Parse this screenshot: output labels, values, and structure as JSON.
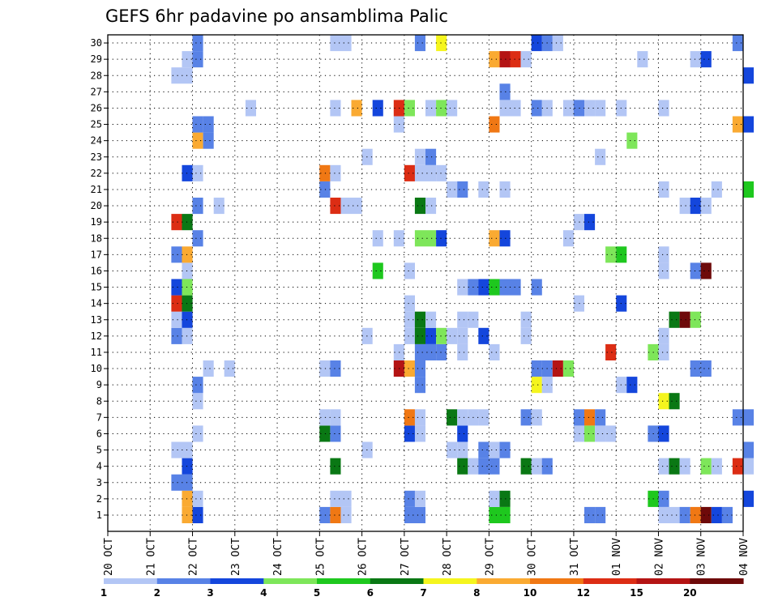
{
  "chart_data": {
    "type": "heatmap",
    "title": "GEFS 6hr padavine po ansamblima Palic",
    "xlabel": "",
    "ylabel": "",
    "x_start": "2025-10-20 00:00",
    "step_hours": 6,
    "x_ticks": [
      "20 OCT",
      "21 OCT",
      "22 OCT",
      "23 OCT",
      "24 OCT",
      "25 OCT",
      "26 OCT",
      "27 OCT",
      "28 OCT",
      "29 OCT",
      "30 OCT",
      "31 OCT",
      "01 NOV",
      "02 NOV",
      "03 NOV",
      "04 NOV"
    ],
    "y_ticks": [
      1,
      2,
      3,
      4,
      5,
      6,
      7,
      8,
      9,
      10,
      11,
      12,
      13,
      14,
      15,
      16,
      17,
      18,
      19,
      20,
      21,
      22,
      23,
      24,
      25,
      26,
      27,
      28,
      29,
      30
    ],
    "grid": true,
    "color_levels": [
      1,
      2,
      3,
      4,
      5,
      6,
      7,
      8,
      10,
      12,
      15,
      20
    ],
    "colorbar_tick_labels": [
      "1",
      "2",
      "3",
      "4",
      "5",
      "6",
      "7",
      "8",
      "10",
      "12",
      "15",
      "20"
    ],
    "colors": [
      "#b3c6f5",
      "#5882e6",
      "#1446dc",
      "#7ee65a",
      "#1ec81e",
      "#0a7814",
      "#f5f51e",
      "#faaa32",
      "#f07814",
      "#dc2d14",
      "#b41414",
      "#6e0a0a"
    ],
    "cells": [
      [
        "2025-10-22 00:00",
        1,
        3
      ],
      [
        "2025-10-21 18:00",
        1,
        8
      ],
      [
        "2025-10-25 00:00",
        1,
        2
      ],
      [
        "2025-10-25 06:00",
        1,
        10
      ],
      [
        "2025-10-25 12:00",
        1,
        1
      ],
      [
        "2025-10-27 00:00",
        1,
        2
      ],
      [
        "2025-10-27 06:00",
        1,
        2
      ],
      [
        "2025-10-29 00:00",
        1,
        5
      ],
      [
        "2025-10-29 06:00",
        1,
        5
      ],
      [
        "2025-10-31 06:00",
        1,
        2
      ],
      [
        "2025-10-31 12:00",
        1,
        2
      ],
      [
        "2025-11-02 00:00",
        1,
        1
      ],
      [
        "2025-11-02 06:00",
        1,
        1
      ],
      [
        "2025-11-02 12:00",
        1,
        2
      ],
      [
        "2025-11-02 18:00",
        1,
        10
      ],
      [
        "2025-11-03 00:00",
        1,
        20
      ],
      [
        "2025-11-03 06:00",
        1,
        3
      ],
      [
        "2025-11-03 12:00",
        1,
        2
      ],
      [
        "2025-10-21 18:00",
        2,
        8
      ],
      [
        "2025-10-22 00:00",
        2,
        1
      ],
      [
        "2025-10-25 06:00",
        2,
        1
      ],
      [
        "2025-10-25 12:00",
        2,
        1
      ],
      [
        "2025-10-27 00:00",
        2,
        2
      ],
      [
        "2025-10-27 06:00",
        2,
        1
      ],
      [
        "2025-10-29 00:00",
        2,
        1
      ],
      [
        "2025-10-29 06:00",
        2,
        6
      ],
      [
        "2025-11-01 18:00",
        2,
        5
      ],
      [
        "2025-11-02 00:00",
        2,
        2
      ],
      [
        "2025-11-04 00:00",
        2,
        3
      ],
      [
        "2025-10-21 12:00",
        3,
        2
      ],
      [
        "2025-10-21 18:00",
        3,
        2
      ],
      [
        "2025-10-21 18:00",
        4,
        3
      ],
      [
        "2025-10-25 06:00",
        4,
        6
      ],
      [
        "2025-10-28 06:00",
        4,
        6
      ],
      [
        "2025-10-28 12:00",
        4,
        1
      ],
      [
        "2025-10-28 18:00",
        4,
        2
      ],
      [
        "2025-10-29 00:00",
        4,
        2
      ],
      [
        "2025-10-29 18:00",
        4,
        6
      ],
      [
        "2025-10-30 00:00",
        4,
        1
      ],
      [
        "2025-10-30 06:00",
        4,
        2
      ],
      [
        "2025-11-02 00:00",
        4,
        1
      ],
      [
        "2025-11-02 06:00",
        4,
        6
      ],
      [
        "2025-11-02 12:00",
        4,
        1
      ],
      [
        "2025-11-03 00:00",
        4,
        4
      ],
      [
        "2025-11-03 06:00",
        4,
        1
      ],
      [
        "2025-11-03 18:00",
        4,
        12
      ],
      [
        "2025-11-04 00:00",
        4,
        1
      ],
      [
        "2025-10-21 12:00",
        5,
        1
      ],
      [
        "2025-10-21 18:00",
        5,
        1
      ],
      [
        "2025-10-26 00:00",
        5,
        1
      ],
      [
        "2025-10-28 00:00",
        5,
        1
      ],
      [
        "2025-10-28 06:00",
        5,
        1
      ],
      [
        "2025-10-28 18:00",
        5,
        2
      ],
      [
        "2025-10-29 00:00",
        5,
        1
      ],
      [
        "2025-10-29 06:00",
        5,
        2
      ],
      [
        "2025-11-04 00:00",
        5,
        2
      ],
      [
        "2025-10-22 00:00",
        6,
        1
      ],
      [
        "2025-10-25 00:00",
        6,
        6
      ],
      [
        "2025-10-25 06:00",
        6,
        2
      ],
      [
        "2025-10-27 00:00",
        6,
        3
      ],
      [
        "2025-10-27 06:00",
        6,
        1
      ],
      [
        "2025-10-28 06:00",
        6,
        3
      ],
      [
        "2025-10-31 18:00",
        6,
        1
      ],
      [
        "2025-10-31 00:00",
        6,
        1
      ],
      [
        "2025-10-31 06:00",
        6,
        4
      ],
      [
        "2025-10-31 12:00",
        6,
        1
      ],
      [
        "2025-11-01 18:00",
        6,
        2
      ],
      [
        "2025-11-02 00:00",
        6,
        3
      ],
      [
        "2025-10-25 00:00",
        7,
        1
      ],
      [
        "2025-10-25 06:00",
        7,
        1
      ],
      [
        "2025-10-27 00:00",
        7,
        10
      ],
      [
        "2025-10-27 06:00",
        7,
        1
      ],
      [
        "2025-10-28 00:00",
        7,
        6
      ],
      [
        "2025-10-28 06:00",
        7,
        1
      ],
      [
        "2025-10-28 12:00",
        7,
        1
      ],
      [
        "2025-10-28 18:00",
        7,
        1
      ],
      [
        "2025-10-29 18:00",
        7,
        2
      ],
      [
        "2025-10-30 00:00",
        7,
        1
      ],
      [
        "2025-10-31 00:00",
        7,
        2
      ],
      [
        "2025-10-31 06:00",
        7,
        10
      ],
      [
        "2025-10-31 12:00",
        7,
        2
      ],
      [
        "2025-11-03 18:00",
        7,
        2
      ],
      [
        "2025-11-04 00:00",
        7,
        2
      ],
      [
        "2025-10-22 00:00",
        8,
        1
      ],
      [
        "2025-11-02 00:00",
        8,
        7
      ],
      [
        "2025-11-02 06:00",
        8,
        6
      ],
      [
        "2025-10-22 00:00",
        9,
        2
      ],
      [
        "2025-10-27 06:00",
        9,
        2
      ],
      [
        "2025-10-30 00:00",
        9,
        7
      ],
      [
        "2025-10-30 06:00",
        9,
        1
      ],
      [
        "2025-11-01 00:00",
        9,
        1
      ],
      [
        "2025-11-01 06:00",
        9,
        3
      ],
      [
        "2025-10-22 06:00",
        10,
        1
      ],
      [
        "2025-10-22 18:00",
        10,
        1
      ],
      [
        "2025-10-25 00:00",
        10,
        1
      ],
      [
        "2025-10-25 06:00",
        10,
        2
      ],
      [
        "2025-10-26 18:00",
        10,
        15
      ],
      [
        "2025-10-27 00:00",
        10,
        8
      ],
      [
        "2025-10-27 06:00",
        10,
        2
      ],
      [
        "2025-10-30 00:00",
        10,
        2
      ],
      [
        "2025-10-30 06:00",
        10,
        2
      ],
      [
        "2025-10-30 12:00",
        10,
        15
      ],
      [
        "2025-10-30 18:00",
        10,
        4
      ],
      [
        "2025-11-02 18:00",
        10,
        2
      ],
      [
        "2025-11-03 00:00",
        10,
        2
      ],
      [
        "2025-10-26 18:00",
        11,
        1
      ],
      [
        "2025-10-27 06:00",
        11,
        2
      ],
      [
        "2025-10-27 12:00",
        11,
        2
      ],
      [
        "2025-10-27 18:00",
        11,
        2
      ],
      [
        "2025-10-28 06:00",
        11,
        1
      ],
      [
        "2025-10-29 00:00",
        11,
        1
      ],
      [
        "2025-10-31 18:00",
        11,
        12
      ],
      [
        "2025-11-01 18:00",
        11,
        4
      ],
      [
        "2025-11-02 00:00",
        11,
        1
      ],
      [
        "2025-10-21 12:00",
        12,
        2
      ],
      [
        "2025-10-21 18:00",
        12,
        1
      ],
      [
        "2025-10-26 00:00",
        12,
        1
      ],
      [
        "2025-10-27 00:00",
        12,
        1
      ],
      [
        "2025-10-27 06:00",
        12,
        6
      ],
      [
        "2025-10-27 12:00",
        12,
        3
      ],
      [
        "2025-10-27 18:00",
        12,
        4
      ],
      [
        "2025-10-28 00:00",
        12,
        1
      ],
      [
        "2025-10-28 06:00",
        12,
        1
      ],
      [
        "2025-10-28 18:00",
        12,
        3
      ],
      [
        "2025-10-29 18:00",
        12,
        1
      ],
      [
        "2025-11-02 00:00",
        12,
        1
      ],
      [
        "2025-10-21 12:00",
        13,
        1
      ],
      [
        "2025-10-21 18:00",
        13,
        3
      ],
      [
        "2025-10-27 00:00",
        13,
        1
      ],
      [
        "2025-10-27 06:00",
        13,
        6
      ],
      [
        "2025-10-27 12:00",
        13,
        1
      ],
      [
        "2025-10-28 06:00",
        13,
        1
      ],
      [
        "2025-10-28 12:00",
        13,
        1
      ],
      [
        "2025-10-29 18:00",
        13,
        1
      ],
      [
        "2025-11-02 06:00",
        13,
        6
      ],
      [
        "2025-11-02 12:00",
        13,
        20
      ],
      [
        "2025-11-02 18:00",
        13,
        4
      ],
      [
        "2025-10-21 12:00",
        14,
        12
      ],
      [
        "2025-10-21 18:00",
        14,
        6
      ],
      [
        "2025-10-27 00:00",
        14,
        1
      ],
      [
        "2025-10-31 00:00",
        14,
        1
      ],
      [
        "2025-11-01 00:00",
        14,
        3
      ],
      [
        "2025-10-21 12:00",
        15,
        3
      ],
      [
        "2025-10-21 18:00",
        15,
        4
      ],
      [
        "2025-10-28 06:00",
        15,
        1
      ],
      [
        "2025-10-28 12:00",
        15,
        2
      ],
      [
        "2025-10-28 18:00",
        15,
        3
      ],
      [
        "2025-10-29 00:00",
        15,
        5
      ],
      [
        "2025-10-29 06:00",
        15,
        2
      ],
      [
        "2025-10-29 12:00",
        15,
        2
      ],
      [
        "2025-10-30 00:00",
        15,
        2
      ],
      [
        "2025-10-21 18:00",
        16,
        1
      ],
      [
        "2025-10-26 06:00",
        16,
        5
      ],
      [
        "2025-10-27 00:00",
        16,
        1
      ],
      [
        "2025-11-02 00:00",
        16,
        1
      ],
      [
        "2025-11-02 18:00",
        16,
        2
      ],
      [
        "2025-11-03 00:00",
        16,
        20
      ],
      [
        "2025-10-21 12:00",
        17,
        2
      ],
      [
        "2025-10-21 18:00",
        17,
        8
      ],
      [
        "2025-10-31 18:00",
        17,
        4
      ],
      [
        "2025-11-01 00:00",
        17,
        5
      ],
      [
        "2025-11-02 00:00",
        17,
        1
      ],
      [
        "2025-10-22 00:00",
        18,
        2
      ],
      [
        "2025-10-26 06:00",
        18,
        1
      ],
      [
        "2025-10-26 18:00",
        18,
        1
      ],
      [
        "2025-10-27 06:00",
        18,
        4
      ],
      [
        "2025-10-27 12:00",
        18,
        4
      ],
      [
        "2025-10-27 18:00",
        18,
        3
      ],
      [
        "2025-10-29 00:00",
        18,
        8
      ],
      [
        "2025-10-29 06:00",
        18,
        3
      ],
      [
        "2025-10-30 18:00",
        18,
        1
      ],
      [
        "2025-10-21 12:00",
        19,
        12
      ],
      [
        "2025-10-21 18:00",
        19,
        6
      ],
      [
        "2025-10-31 00:00",
        19,
        1
      ],
      [
        "2025-10-31 06:00",
        19,
        3
      ],
      [
        "2025-10-22 00:00",
        20,
        2
      ],
      [
        "2025-10-22 12:00",
        20,
        1
      ],
      [
        "2025-10-25 06:00",
        20,
        12
      ],
      [
        "2025-10-25 12:00",
        20,
        1
      ],
      [
        "2025-10-25 18:00",
        20,
        1
      ],
      [
        "2025-10-27 06:00",
        20,
        6
      ],
      [
        "2025-10-27 12:00",
        20,
        1
      ],
      [
        "2025-11-02 12:00",
        20,
        1
      ],
      [
        "2025-11-02 18:00",
        20,
        3
      ],
      [
        "2025-11-03 00:00",
        20,
        1
      ],
      [
        "2025-10-25 00:00",
        21,
        2
      ],
      [
        "2025-10-28 00:00",
        21,
        1
      ],
      [
        "2025-10-28 06:00",
        21,
        2
      ],
      [
        "2025-10-28 18:00",
        21,
        1
      ],
      [
        "2025-10-29 06:00",
        21,
        1
      ],
      [
        "2025-11-02 00:00",
        21,
        1
      ],
      [
        "2025-11-03 06:00",
        21,
        1
      ],
      [
        "2025-11-04 00:00",
        21,
        5
      ],
      [
        "2025-10-21 18:00",
        22,
        3
      ],
      [
        "2025-10-22 00:00",
        22,
        1
      ],
      [
        "2025-10-25 00:00",
        22,
        10
      ],
      [
        "2025-10-25 06:00",
        22,
        1
      ],
      [
        "2025-10-27 00:00",
        22,
        12
      ],
      [
        "2025-10-27 06:00",
        22,
        1
      ],
      [
        "2025-10-27 12:00",
        22,
        1
      ],
      [
        "2025-10-27 18:00",
        22,
        1
      ],
      [
        "2025-10-26 00:00",
        23,
        1
      ],
      [
        "2025-10-27 06:00",
        23,
        1
      ],
      [
        "2025-10-27 12:00",
        23,
        2
      ],
      [
        "2025-10-31 12:00",
        23,
        1
      ],
      [
        "2025-10-22 00:00",
        24,
        8
      ],
      [
        "2025-10-22 06:00",
        24,
        2
      ],
      [
        "2025-11-01 06:00",
        24,
        4
      ],
      [
        "2025-10-22 00:00",
        25,
        2
      ],
      [
        "2025-10-22 06:00",
        25,
        2
      ],
      [
        "2025-10-26 18:00",
        25,
        1
      ],
      [
        "2025-10-29 00:00",
        25,
        10
      ],
      [
        "2025-11-03 18:00",
        25,
        8
      ],
      [
        "2025-11-04 00:00",
        25,
        3
      ],
      [
        "2025-10-23 06:00",
        26,
        1
      ],
      [
        "2025-10-25 06:00",
        26,
        1
      ],
      [
        "2025-10-25 18:00",
        26,
        8
      ],
      [
        "2025-10-26 06:00",
        26,
        3
      ],
      [
        "2025-10-26 18:00",
        26,
        12
      ],
      [
        "2025-10-27 00:00",
        26,
        4
      ],
      [
        "2025-10-27 12:00",
        26,
        1
      ],
      [
        "2025-10-27 18:00",
        26,
        4
      ],
      [
        "2025-10-28 00:00",
        26,
        1
      ],
      [
        "2025-10-29 06:00",
        26,
        1
      ],
      [
        "2025-10-29 12:00",
        26,
        1
      ],
      [
        "2025-10-30 00:00",
        26,
        2
      ],
      [
        "2025-10-30 06:00",
        26,
        1
      ],
      [
        "2025-10-30 18:00",
        26,
        1
      ],
      [
        "2025-10-31 00:00",
        26,
        2
      ],
      [
        "2025-10-31 06:00",
        26,
        1
      ],
      [
        "2025-10-31 12:00",
        26,
        1
      ],
      [
        "2025-11-01 00:00",
        26,
        1
      ],
      [
        "2025-11-02 00:00",
        26,
        1
      ],
      [
        "2025-10-29 06:00",
        27,
        2
      ],
      [
        "2025-10-21 12:00",
        28,
        1
      ],
      [
        "2025-10-21 18:00",
        28,
        1
      ],
      [
        "2025-11-04 00:00",
        28,
        3
      ],
      [
        "2025-10-21 18:00",
        29,
        1
      ],
      [
        "2025-10-22 00:00",
        29,
        2
      ],
      [
        "2025-10-29 00:00",
        29,
        8
      ],
      [
        "2025-10-29 06:00",
        29,
        15
      ],
      [
        "2025-10-29 12:00",
        29,
        12
      ],
      [
        "2025-10-29 18:00",
        29,
        1
      ],
      [
        "2025-11-01 12:00",
        29,
        1
      ],
      [
        "2025-11-02 18:00",
        29,
        1
      ],
      [
        "2025-11-03 00:00",
        29,
        3
      ],
      [
        "2025-10-22 00:00",
        30,
        2
      ],
      [
        "2025-10-25 06:00",
        30,
        1
      ],
      [
        "2025-10-25 12:00",
        30,
        1
      ],
      [
        "2025-10-27 06:00",
        30,
        2
      ],
      [
        "2025-10-27 18:00",
        30,
        7
      ],
      [
        "2025-10-30 00:00",
        30,
        3
      ],
      [
        "2025-10-30 06:00",
        30,
        2
      ],
      [
        "2025-10-30 12:00",
        30,
        1
      ],
      [
        "2025-11-03 18:00",
        30,
        2
      ]
    ]
  }
}
